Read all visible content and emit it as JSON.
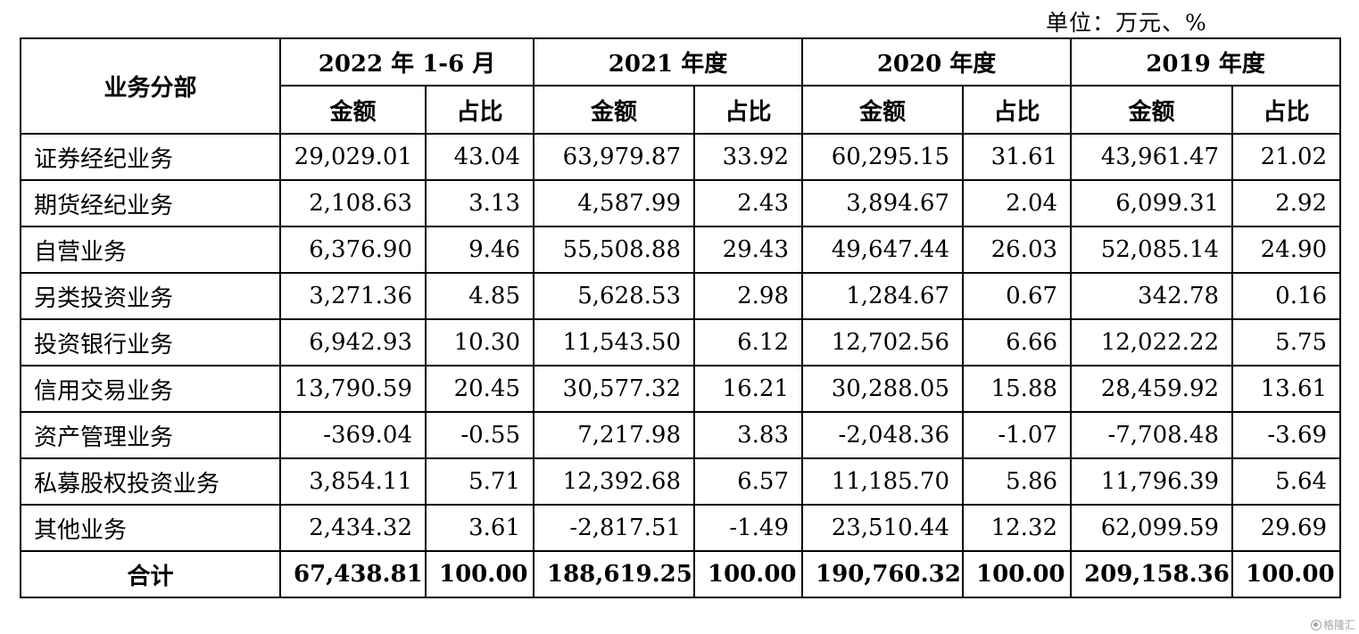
{
  "unit_label": "单位：万元、%",
  "header": {
    "segment_col": "业务分部",
    "periods": [
      "2022 年 1-6 月",
      "2021 年度",
      "2020 年度",
      "2019 年度"
    ],
    "amount_label": "金额",
    "share_label": "占比"
  },
  "rows": [
    {
      "segment": "证券经纪业务",
      "values": [
        "29,029.01",
        "43.04",
        "63,979.87",
        "33.92",
        "60,295.15",
        "31.61",
        "43,961.47",
        "21.02"
      ]
    },
    {
      "segment": "期货经纪业务",
      "values": [
        "2,108.63",
        "3.13",
        "4,587.99",
        "2.43",
        "3,894.67",
        "2.04",
        "6,099.31",
        "2.92"
      ]
    },
    {
      "segment": "自营业务",
      "values": [
        "6,376.90",
        "9.46",
        "55,508.88",
        "29.43",
        "49,647.44",
        "26.03",
        "52,085.14",
        "24.90"
      ]
    },
    {
      "segment": "另类投资业务",
      "values": [
        "3,271.36",
        "4.85",
        "5,628.53",
        "2.98",
        "1,284.67",
        "0.67",
        "342.78",
        "0.16"
      ]
    },
    {
      "segment": "投资银行业务",
      "values": [
        "6,942.93",
        "10.30",
        "11,543.50",
        "6.12",
        "12,702.56",
        "6.66",
        "12,022.22",
        "5.75"
      ]
    },
    {
      "segment": "信用交易业务",
      "values": [
        "13,790.59",
        "20.45",
        "30,577.32",
        "16.21",
        "30,288.05",
        "15.88",
        "28,459.92",
        "13.61"
      ]
    },
    {
      "segment": "资产管理业务",
      "values": [
        "-369.04",
        "-0.55",
        "7,217.98",
        "3.83",
        "-2,048.36",
        "-1.07",
        "-7,708.48",
        "-3.69"
      ]
    },
    {
      "segment": "私募股权投资业务",
      "values": [
        "3,854.11",
        "5.71",
        "12,392.68",
        "6.57",
        "11,185.70",
        "5.86",
        "11,796.39",
        "5.64"
      ]
    },
    {
      "segment": "其他业务",
      "values": [
        "2,434.32",
        "3.61",
        "-2,817.51",
        "-1.49",
        "23,510.44",
        "12.32",
        "62,099.59",
        "29.69"
      ]
    }
  ],
  "total": {
    "segment": "合计",
    "values": [
      "67,438.81",
      "100.00",
      "188,619.25",
      "100.00",
      "190,760.32",
      "100.00",
      "209,158.36",
      "100.00"
    ]
  },
  "watermark": {
    "text": "格隆汇",
    "icon": "gelonghui-logo-icon"
  }
}
